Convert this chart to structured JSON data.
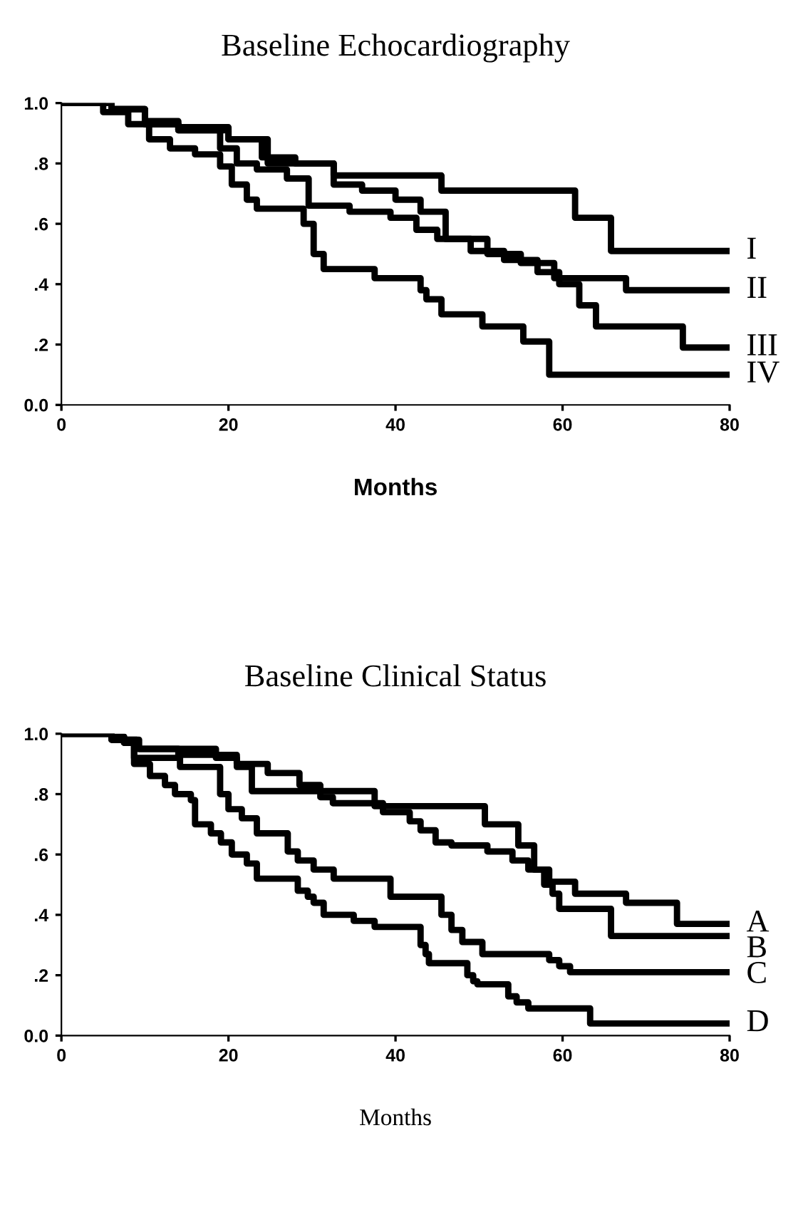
{
  "chart_data": [
    {
      "type": "step",
      "title": "Baseline Echocardiography",
      "xlabel": "Months",
      "xlim": [
        0,
        80
      ],
      "ylim": [
        0,
        1
      ],
      "xticks": [
        0,
        20,
        40,
        60,
        80
      ],
      "yticks": [
        {
          "value": 0,
          "label": "0.0"
        },
        {
          "value": 0.2,
          "label": ".2"
        },
        {
          "value": 0.4,
          "label": ".4"
        },
        {
          "value": 0.6,
          "label": ".6"
        },
        {
          "value": 0.8,
          "label": ".8"
        },
        {
          "value": 1,
          "label": "1.0"
        }
      ],
      "grid": false,
      "legend": false,
      "line_style": "solid",
      "series": [
        {
          "name": "I",
          "color": "#000000",
          "x": [
            0,
            6,
            10,
            14,
            20,
            24.7,
            32.6,
            45.5,
            61.5,
            65.8,
            80
          ],
          "values": [
            1.0,
            0.98,
            0.94,
            0.92,
            0.88,
            0.8,
            0.76,
            0.71,
            0.62,
            0.51,
            0.51
          ]
        },
        {
          "name": "II",
          "color": "#000000",
          "x": [
            0,
            6,
            10,
            14,
            20,
            24,
            28,
            32.6,
            36,
            40,
            43,
            46,
            51,
            55,
            59,
            67.6,
            80
          ],
          "values": [
            1.0,
            0.98,
            0.93,
            0.91,
            0.88,
            0.82,
            0.8,
            0.73,
            0.71,
            0.68,
            0.64,
            0.55,
            0.5,
            0.47,
            0.42,
            0.38,
            0.38
          ]
        },
        {
          "name": "III",
          "color": "#000000",
          "x": [
            0,
            6,
            10,
            14,
            19,
            21,
            23.4,
            27,
            29.6,
            34.5,
            39.4,
            42.5,
            45,
            49,
            53,
            57,
            59.6,
            62,
            64,
            74.4,
            80
          ],
          "values": [
            1.0,
            0.98,
            0.93,
            0.91,
            0.85,
            0.8,
            0.78,
            0.75,
            0.66,
            0.64,
            0.62,
            0.58,
            0.55,
            0.51,
            0.48,
            0.44,
            0.4,
            0.33,
            0.26,
            0.19,
            0.19
          ]
        },
        {
          "name": "IV",
          "color": "#000000",
          "x": [
            0,
            5,
            8,
            10.5,
            13,
            16,
            19,
            20.4,
            22.2,
            23.4,
            29,
            30.2,
            31.4,
            37.5,
            43,
            43.7,
            45.5,
            50.4,
            55.3,
            58.4,
            80
          ],
          "values": [
            1.0,
            0.97,
            0.93,
            0.88,
            0.85,
            0.83,
            0.79,
            0.73,
            0.68,
            0.65,
            0.6,
            0.5,
            0.45,
            0.42,
            0.38,
            0.35,
            0.3,
            0.26,
            0.21,
            0.1,
            0.1
          ]
        }
      ]
    },
    {
      "type": "step",
      "title": "Baseline Clinical Status",
      "xlabel": "Months",
      "xlim": [
        0,
        80
      ],
      "ylim": [
        0,
        1
      ],
      "xticks": [
        0,
        20,
        40,
        60,
        80
      ],
      "yticks": [
        {
          "value": 0,
          "label": "0.0"
        },
        {
          "value": 0.2,
          "label": ".2"
        },
        {
          "value": 0.4,
          "label": ".4"
        },
        {
          "value": 0.6,
          "label": ".6"
        },
        {
          "value": 0.8,
          "label": ".8"
        },
        {
          "value": 1,
          "label": "1.0"
        }
      ],
      "grid": false,
      "legend": false,
      "line_style": "solid",
      "series": [
        {
          "name": "A",
          "color": "#000000",
          "x": [
            0,
            6,
            9.3,
            18.5,
            21,
            22.8,
            37.5,
            50.7,
            54.7,
            56.6,
            58.4,
            59.6,
            61.5,
            67.6,
            73.7,
            80
          ],
          "values": [
            1.0,
            0.98,
            0.95,
            0.93,
            0.89,
            0.81,
            0.76,
            0.7,
            0.63,
            0.55,
            0.51,
            0.51,
            0.47,
            0.44,
            0.37,
            0.37
          ]
        },
        {
          "name": "B",
          "color": "#000000",
          "x": [
            0,
            6,
            9,
            14,
            18.5,
            21,
            24.7,
            28.5,
            31,
            32.5,
            38.5,
            41.7,
            43,
            44.8,
            46.7,
            51,
            54,
            55.9,
            57.8,
            58.8,
            59.6,
            65.8,
            80
          ],
          "values": [
            1.0,
            0.98,
            0.95,
            0.93,
            0.92,
            0.9,
            0.87,
            0.83,
            0.79,
            0.77,
            0.74,
            0.71,
            0.68,
            0.64,
            0.63,
            0.61,
            0.58,
            0.55,
            0.5,
            0.47,
            0.42,
            0.33,
            0.33
          ]
        },
        {
          "name": "C",
          "color": "#000000",
          "x": [
            0,
            6,
            7.5,
            8.7,
            14.2,
            19,
            20,
            21.6,
            23.4,
            27.1,
            28.3,
            30.2,
            32.6,
            39.4,
            45.5,
            46.7,
            48,
            50.4,
            58.4,
            59.6,
            60.9,
            80
          ],
          "values": [
            1.0,
            0.99,
            0.97,
            0.92,
            0.89,
            0.8,
            0.75,
            0.72,
            0.67,
            0.61,
            0.58,
            0.55,
            0.52,
            0.46,
            0.4,
            0.35,
            0.31,
            0.27,
            0.25,
            0.23,
            0.21,
            0.21
          ]
        },
        {
          "name": "D",
          "color": "#000000",
          "x": [
            0,
            6,
            7.5,
            8.7,
            10.6,
            12.4,
            13.6,
            15.5,
            16,
            17.9,
            19.1,
            20.4,
            22.2,
            23.4,
            28.3,
            29.5,
            30.2,
            31.4,
            35,
            37.5,
            43,
            43.6,
            44,
            48.6,
            49.3,
            49.8,
            53.5,
            54.5,
            55.9,
            63.3,
            80
          ],
          "values": [
            1.0,
            0.99,
            0.97,
            0.9,
            0.86,
            0.83,
            0.8,
            0.78,
            0.7,
            0.67,
            0.64,
            0.6,
            0.57,
            0.52,
            0.48,
            0.46,
            0.44,
            0.4,
            0.38,
            0.36,
            0.3,
            0.27,
            0.24,
            0.2,
            0.18,
            0.17,
            0.13,
            0.11,
            0.09,
            0.04,
            0.04
          ]
        }
      ]
    }
  ]
}
